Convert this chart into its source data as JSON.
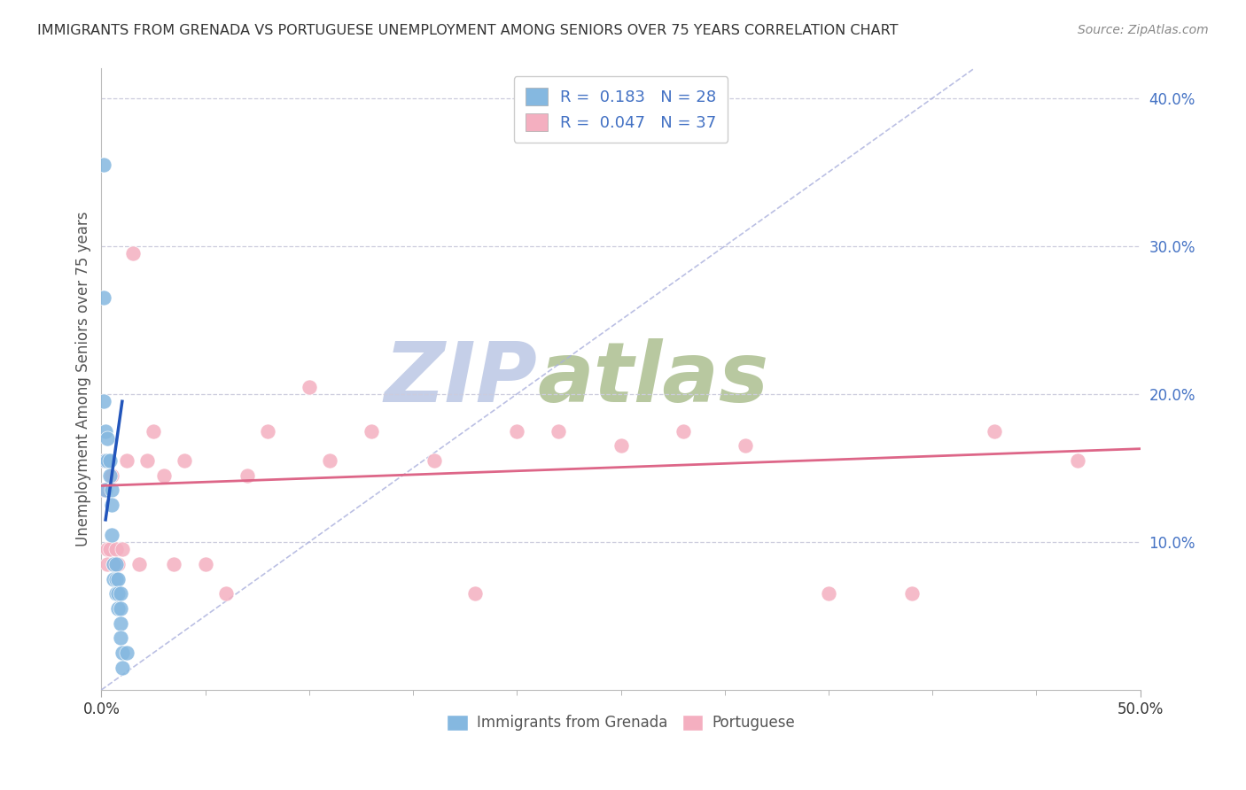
{
  "title": "IMMIGRANTS FROM GRENADA VS PORTUGUESE UNEMPLOYMENT AMONG SENIORS OVER 75 YEARS CORRELATION CHART",
  "source": "Source: ZipAtlas.com",
  "ylabel": "Unemployment Among Seniors over 75 years",
  "xlim": [
    0,
    0.5
  ],
  "ylim": [
    0,
    0.42
  ],
  "xtick_pos": [
    0.0,
    0.5
  ],
  "xtick_labels": [
    "0.0%",
    "50.0%"
  ],
  "xtick_minor": [
    0.05,
    0.1,
    0.15,
    0.2,
    0.25,
    0.3,
    0.35,
    0.4,
    0.45
  ],
  "ytick_pos": [
    0.1,
    0.2,
    0.3,
    0.4
  ],
  "ytick_labels": [
    "10.0%",
    "20.0%",
    "30.0%",
    "40.0%"
  ],
  "blue_R": "0.183",
  "blue_N": "28",
  "pink_R": "0.047",
  "pink_N": "37",
  "blue_scatter_x": [
    0.001,
    0.001,
    0.001,
    0.002,
    0.002,
    0.002,
    0.003,
    0.003,
    0.004,
    0.004,
    0.005,
    0.005,
    0.005,
    0.006,
    0.006,
    0.007,
    0.007,
    0.007,
    0.008,
    0.008,
    0.008,
    0.009,
    0.009,
    0.009,
    0.009,
    0.01,
    0.01,
    0.012
  ],
  "blue_scatter_y": [
    0.355,
    0.195,
    0.265,
    0.175,
    0.155,
    0.135,
    0.17,
    0.155,
    0.155,
    0.145,
    0.135,
    0.125,
    0.105,
    0.085,
    0.075,
    0.085,
    0.075,
    0.065,
    0.075,
    0.065,
    0.055,
    0.065,
    0.055,
    0.045,
    0.035,
    0.025,
    0.015,
    0.025
  ],
  "pink_scatter_x": [
    0.001,
    0.001,
    0.002,
    0.003,
    0.003,
    0.004,
    0.005,
    0.006,
    0.007,
    0.008,
    0.01,
    0.012,
    0.015,
    0.018,
    0.022,
    0.025,
    0.03,
    0.035,
    0.04,
    0.05,
    0.06,
    0.07,
    0.08,
    0.1,
    0.11,
    0.13,
    0.16,
    0.18,
    0.2,
    0.22,
    0.25,
    0.28,
    0.31,
    0.35,
    0.39,
    0.43,
    0.47
  ],
  "pink_scatter_y": [
    0.155,
    0.135,
    0.155,
    0.095,
    0.085,
    0.095,
    0.145,
    0.085,
    0.095,
    0.085,
    0.095,
    0.155,
    0.295,
    0.085,
    0.155,
    0.175,
    0.145,
    0.085,
    0.155,
    0.085,
    0.065,
    0.145,
    0.175,
    0.205,
    0.155,
    0.175,
    0.155,
    0.065,
    0.175,
    0.175,
    0.165,
    0.175,
    0.165,
    0.065,
    0.065,
    0.175,
    0.155
  ],
  "blue_line_x": [
    0.002,
    0.01
  ],
  "blue_line_y": [
    0.115,
    0.195
  ],
  "pink_line_x": [
    0.0,
    0.5
  ],
  "pink_line_y": [
    0.138,
    0.163
  ],
  "diag_line_x": [
    0.0,
    0.42
  ],
  "diag_line_y": [
    0.0,
    0.42
  ],
  "blue_color": "#85b8e0",
  "pink_color": "#f4afc0",
  "blue_line_color": "#2255bb",
  "pink_line_color": "#dd6688",
  "diag_line_color": "#aab0dd",
  "axis_label_color": "#4472c4",
  "background_color": "#ffffff",
  "grid_color": "#ccccdd",
  "watermark_zip_color": "#c5cfe8",
  "watermark_atlas_color": "#b8c8a0",
  "legend_label_color": "#4472c4"
}
